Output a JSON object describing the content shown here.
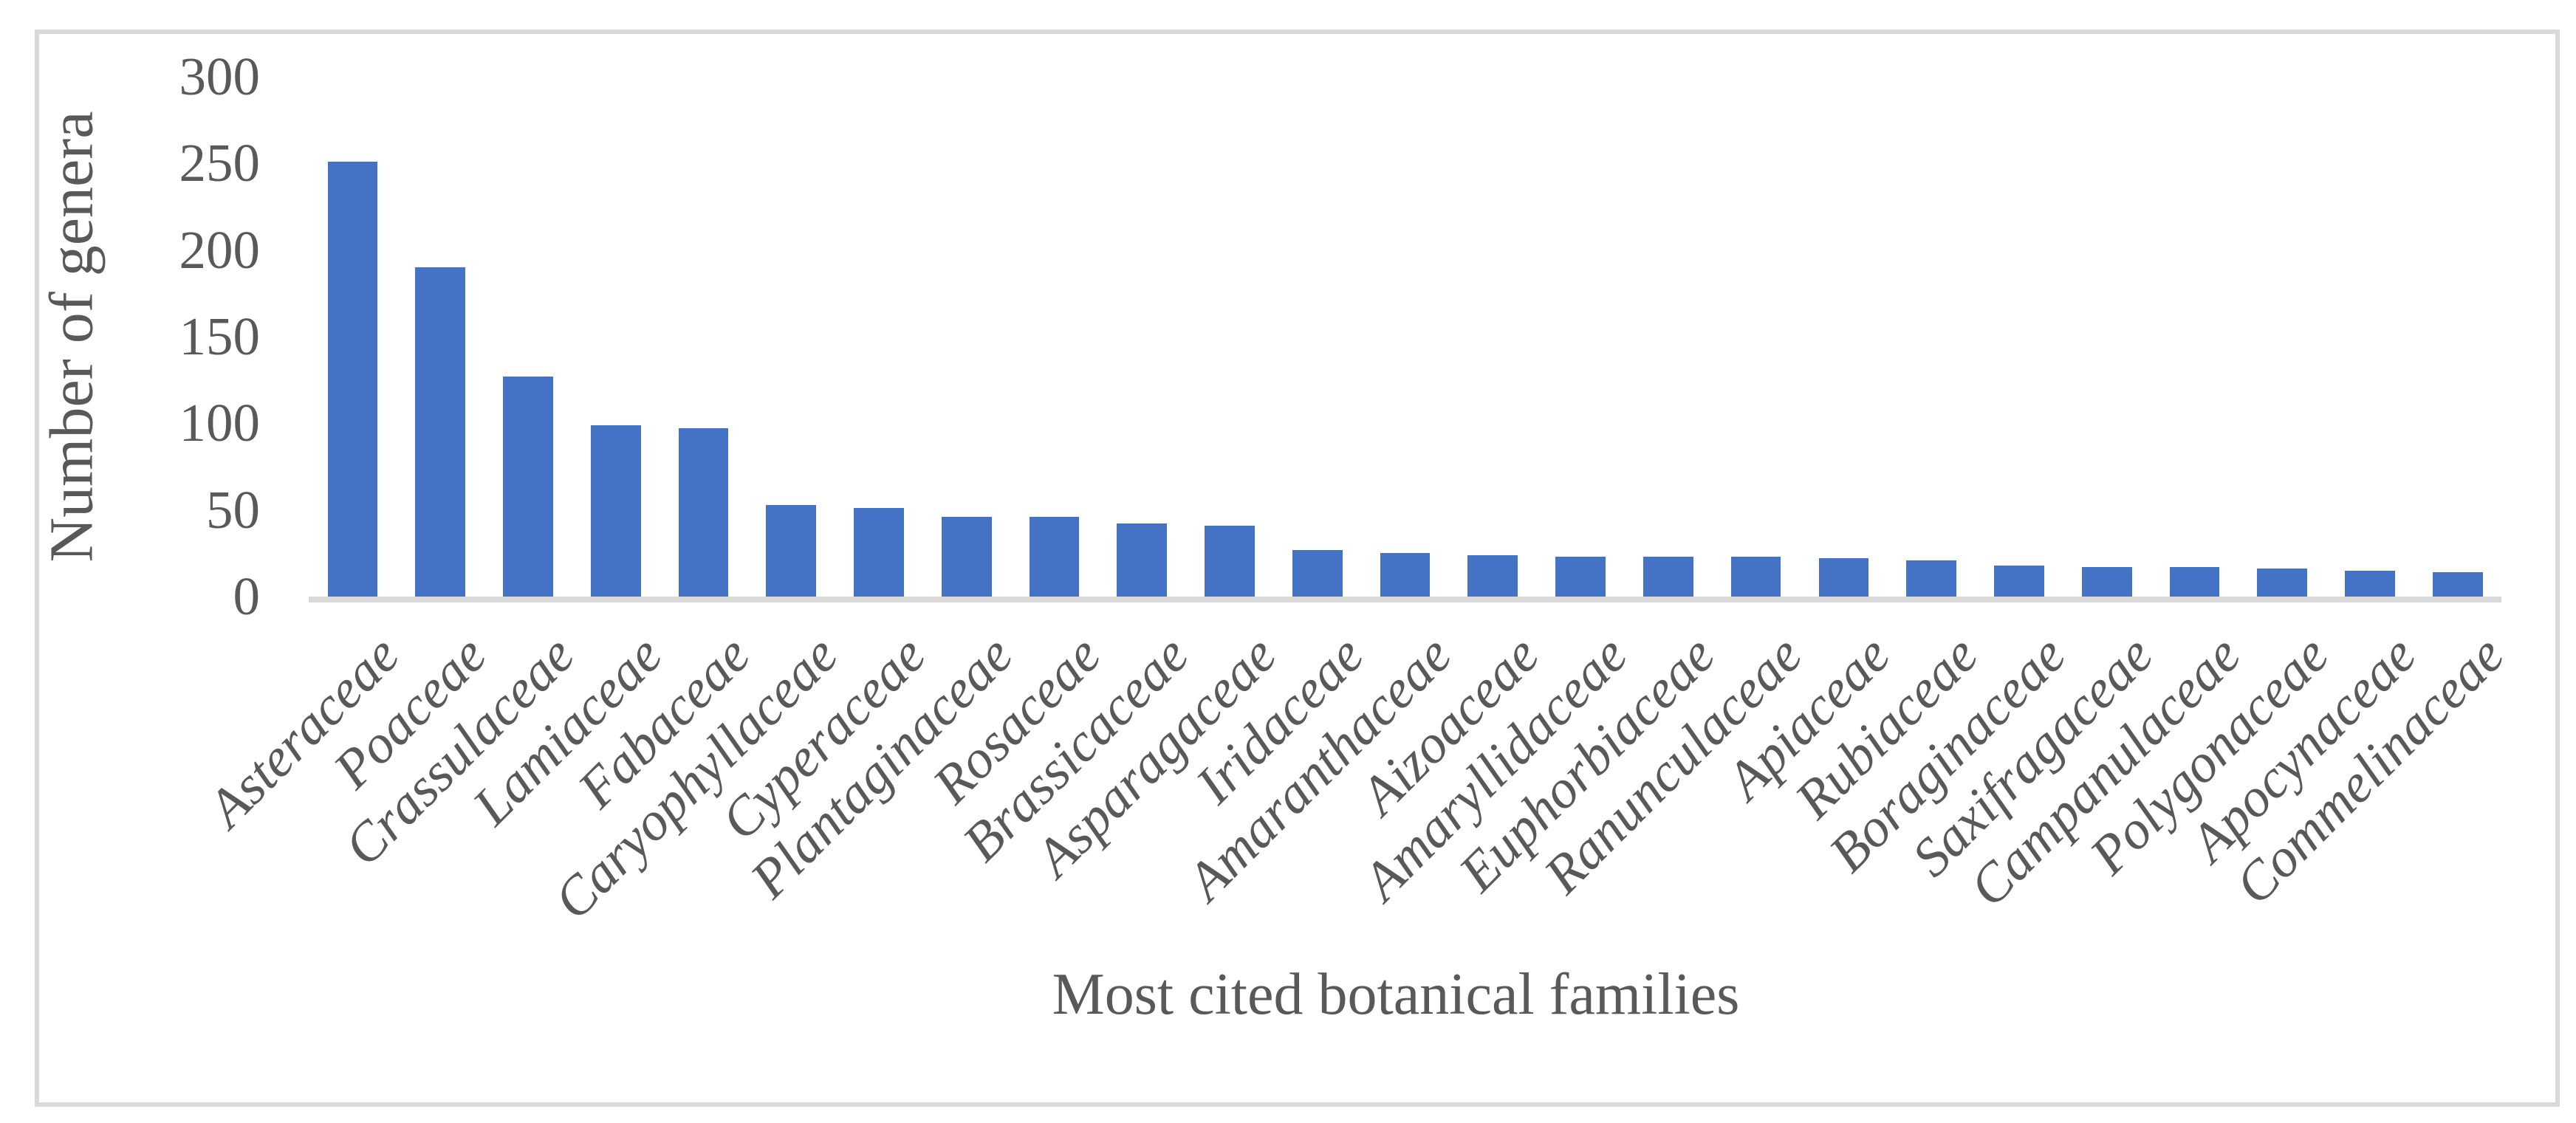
{
  "figure": {
    "background": "#FFFFFF",
    "border_color": "#D9D9D9",
    "text_color": "#595959",
    "axis_line_color": "#D9D9D9",
    "bar_color": "#4472C4"
  },
  "chart_data": {
    "type": "bar",
    "title": "",
    "xlabel": "Most cited botanical families",
    "ylabel": "Number of genera",
    "ylim": [
      0,
      300
    ],
    "ytick_step": 50,
    "yticks": [
      0,
      50,
      100,
      150,
      200,
      250,
      300
    ],
    "grid": false,
    "legend": "none",
    "categories": [
      "Asteraceae",
      "Poaceae",
      "Crassulaceae",
      "Lamiaceae",
      "Fabaceae",
      "Caryophyllaceae",
      "Cyperaceae",
      "Plantaginaceae",
      "Rosaceae",
      "Brassicaceae",
      "Asparagaceae",
      "Iridaceae",
      "Amaranthaceae",
      "Aizoaceae",
      "Amaryllidaceae",
      "Euphorbiaceae",
      "Ranunculaceae",
      "Apiaceae",
      "Rubiaceae",
      "Boraginaceae",
      "Saxifragaceae",
      "Campanulaceae",
      "Polygonaceae",
      "Apocynaceae",
      "Commelinaceae"
    ],
    "values": [
      251,
      190,
      127,
      99,
      97,
      53,
      51,
      46,
      46,
      42,
      41,
      27,
      25,
      24,
      23,
      23,
      23,
      22,
      21,
      18,
      17,
      17,
      16,
      15,
      14
    ]
  }
}
